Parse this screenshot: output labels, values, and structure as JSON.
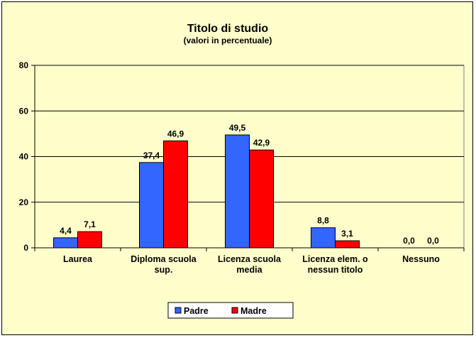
{
  "chart_data": {
    "type": "bar",
    "title": "Titolo di studio",
    "subtitle": "(valori in percentuale)",
    "categories": [
      [
        "Laurea"
      ],
      [
        "Diploma scuola",
        "sup."
      ],
      [
        "Licenza scuola",
        "media"
      ],
      [
        "Licenza elem. o",
        "nessun titolo"
      ],
      [
        "Nessuno"
      ]
    ],
    "series": [
      {
        "name": "Padre",
        "values": [
          4.4,
          37.4,
          49.5,
          8.8,
          0.0
        ],
        "labels": [
          "4,4",
          "37,4",
          "49,5",
          "8,8",
          "0,0"
        ],
        "color": "#3366ff"
      },
      {
        "name": "Madre",
        "values": [
          7.1,
          46.9,
          42.9,
          3.1,
          0.0
        ],
        "labels": [
          "7,1",
          "46,9",
          "42,9",
          "3,1",
          "0,0"
        ],
        "color": "#ff0000"
      }
    ],
    "ylim": [
      0,
      80
    ],
    "yticks": [
      0,
      20,
      40,
      60,
      80
    ],
    "grid": true,
    "legend": "bottom-center",
    "plot_background": "#ffffcc"
  }
}
